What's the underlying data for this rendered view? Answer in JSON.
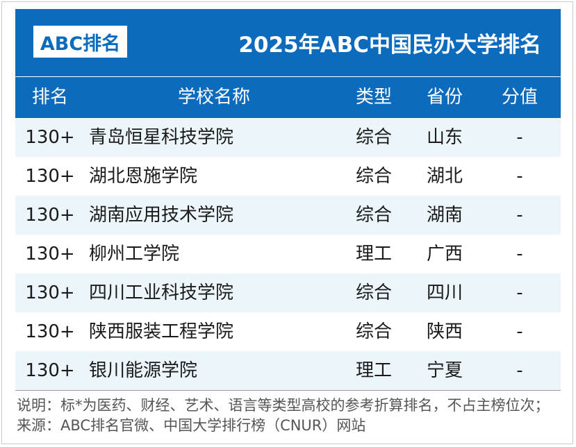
{
  "header": {
    "logo_text": "ABC排名",
    "title": "2025年ABC中国民办大学排名"
  },
  "columns": [
    "排名",
    "学校名称",
    "类型",
    "省份",
    "分值"
  ],
  "rows": [
    {
      "rank": "130+",
      "name": "青岛恒星科技学院",
      "type": "综合",
      "province": "山东",
      "score": "-"
    },
    {
      "rank": "130+",
      "name": "湖北恩施学院",
      "type": "综合",
      "province": "湖北",
      "score": "-"
    },
    {
      "rank": "130+",
      "name": "湖南应用技术学院",
      "type": "综合",
      "province": "湖南",
      "score": "-"
    },
    {
      "rank": "130+",
      "name": "柳州工学院",
      "type": "理工",
      "province": "广西",
      "score": "-"
    },
    {
      "rank": "130+",
      "name": "四川工业科技学院",
      "type": "综合",
      "province": "四川",
      "score": "-"
    },
    {
      "rank": "130+",
      "name": "陕西服装工程学院",
      "type": "综合",
      "province": "陕西",
      "score": "-"
    },
    {
      "rank": "130+",
      "name": "银川能源学院",
      "type": "理工",
      "province": "宁夏",
      "score": "-"
    }
  ],
  "note": "说明：标*为医药、财经、艺术、语言等类型高校的参考折算排名，不占主榜位次；来源：ABC排名官微、中国大学排行榜（CNUR）网站",
  "colors": {
    "brand_blue": "#0d6bbd",
    "row_alt": "#ecf5fa"
  }
}
